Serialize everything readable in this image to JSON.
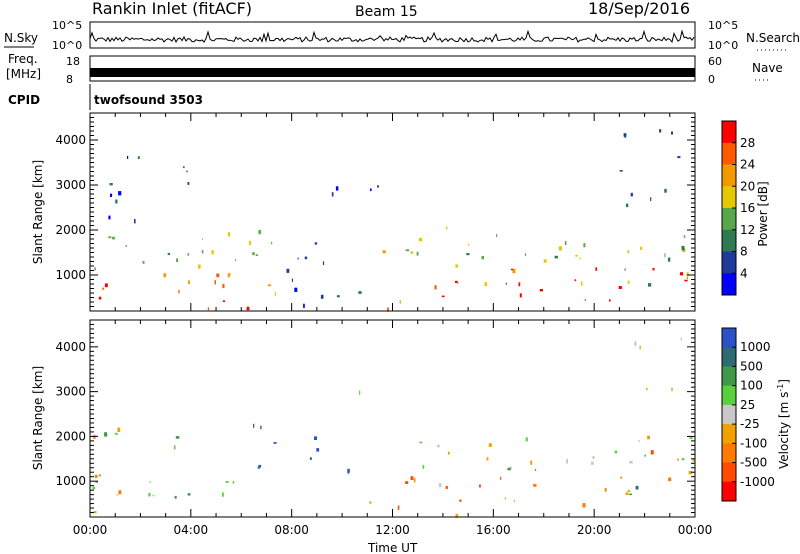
{
  "header": {
    "title": "Rankin Inlet (fitACF)",
    "beam": "Beam 15",
    "date": "18/Sep/2016"
  },
  "top_panels": {
    "nsky_label": "N.Sky",
    "nsky_ticks": [
      "10^5",
      "10^0"
    ],
    "nsearch_label": "N.Search",
    "nsearch_ticks": [
      "10^5",
      "10^0"
    ],
    "freq_label": "Freq.",
    "freq_unit": "[MHz]",
    "freq_ticks": [
      "18",
      "8"
    ],
    "nave_label": "Nave",
    "nave_ticks": [
      "60",
      "0"
    ],
    "cpid_label": "CPID",
    "cpid_value": "twofsound 3503"
  },
  "chart_data": [
    {
      "type": "heatmap",
      "name": "power-panel",
      "ylabel": "Slant Range [km]",
      "y_ticks": [
        "4000",
        "3000",
        "2000",
        "1000"
      ],
      "x_ticks": [
        "00:00",
        "04:00",
        "08:00",
        "12:00",
        "16:00",
        "20:00",
        "00:00"
      ],
      "xlim": [
        0,
        24
      ],
      "ylim": [
        200,
        4600
      ],
      "colorbar_label": "Power [dB]",
      "colorbar_ticks": [
        "28",
        "24",
        "20",
        "16",
        "12",
        "8",
        "4"
      ],
      "colors": [
        "#ff0000",
        "#ff5a00",
        "#f29a00",
        "#e6c800",
        "#58a84a",
        "#2f7a55",
        "#203a9a",
        "#0000ff"
      ],
      "blobs": [
        {
          "t0": 0.0,
          "t1": 5.5,
          "r0": 300,
          "r1": 1100,
          "level": 0.85
        },
        {
          "t0": 0.0,
          "t1": 6.5,
          "r0": 900,
          "r1": 2100,
          "level": 0.5
        },
        {
          "t0": 5.5,
          "t1": 7.5,
          "r0": 500,
          "r1": 2200,
          "level": 0.6
        },
        {
          "t0": 2.0,
          "t1": 7.0,
          "r0": 250,
          "r1": 500,
          "level": 0.95
        },
        {
          "t0": 7.5,
          "t1": 11.0,
          "r0": 250,
          "r1": 1800,
          "level": 0.25
        },
        {
          "t0": 11.0,
          "t1": 15.5,
          "r0": 250,
          "r1": 900,
          "level": 0.8
        },
        {
          "t0": 11.5,
          "t1": 24.0,
          "r0": 800,
          "r1": 2150,
          "level": 0.5
        },
        {
          "t0": 16.5,
          "t1": 22.5,
          "r0": 400,
          "r1": 1200,
          "level": 0.9
        },
        {
          "t0": 22.5,
          "t1": 24.0,
          "r0": 600,
          "r1": 1600,
          "level": 0.8
        },
        {
          "t0": 0.5,
          "t1": 4.0,
          "r0": 2200,
          "r1": 3700,
          "level": 0.2
        },
        {
          "t0": 9.5,
          "t1": 11.5,
          "r0": 2300,
          "r1": 3300,
          "level": 0.15
        },
        {
          "t0": 21.0,
          "t1": 23.5,
          "r0": 2300,
          "r1": 4300,
          "level": 0.25
        }
      ]
    },
    {
      "type": "heatmap",
      "name": "velocity-panel",
      "ylabel": "Slant Range [km]",
      "y_ticks": [
        "4000",
        "3000",
        "2000",
        "1000"
      ],
      "x_ticks": [
        "00:00",
        "04:00",
        "08:00",
        "12:00",
        "16:00",
        "20:00",
        "00:00"
      ],
      "xlim": [
        0,
        24
      ],
      "ylim": [
        200,
        4600
      ],
      "xlabel": "Time UT",
      "colorbar_label": "Velocity [m s",
      "colorbar_label_sup": "-1",
      "colorbar_label_end": "]",
      "colorbar_ticks": [
        "1000",
        "500",
        "100",
        "25",
        "-25",
        "-100",
        "-500",
        "-1000"
      ],
      "colors": [
        "#2a52c8",
        "#2e6a70",
        "#3e9a48",
        "#5ad03a",
        "#c8c8c8",
        "#f0a000",
        "#ff7a00",
        "#ff4a00",
        "#ff0000"
      ],
      "blobs": [
        {
          "t0": 0.0,
          "t1": 6.0,
          "r0": 300,
          "r1": 1200,
          "level": 0.55
        },
        {
          "t0": 0.0,
          "t1": 4.0,
          "r0": 1500,
          "r1": 2200,
          "level": 0.45
        },
        {
          "t0": 3.0,
          "t1": 6.0,
          "r0": 400,
          "r1": 900,
          "level": 0.45
        },
        {
          "t0": 5.5,
          "t1": 7.5,
          "r0": 700,
          "r1": 2300,
          "level": 0.25
        },
        {
          "t0": 8.5,
          "t1": 10.5,
          "r0": 800,
          "r1": 2000,
          "level": 0.1
        },
        {
          "t0": 11.0,
          "t1": 16.0,
          "r0": 250,
          "r1": 1200,
          "level": 0.72
        },
        {
          "t0": 13.0,
          "t1": 24.0,
          "r0": 1200,
          "r1": 2100,
          "level": 0.45
        },
        {
          "t0": 16.0,
          "t1": 22.0,
          "r0": 500,
          "r1": 1300,
          "level": 0.75
        },
        {
          "t0": 20.0,
          "t1": 22.0,
          "r0": 400,
          "r1": 900,
          "level": 0.15
        },
        {
          "t0": 22.0,
          "t1": 24.0,
          "r0": 700,
          "r1": 1900,
          "level": 0.7
        },
        {
          "t0": 10.5,
          "t1": 11.0,
          "r0": 2800,
          "r1": 3300,
          "level": 0.45
        },
        {
          "t0": 21.5,
          "t1": 23.5,
          "r0": 3000,
          "r1": 4300,
          "level": 0.5
        }
      ]
    }
  ]
}
